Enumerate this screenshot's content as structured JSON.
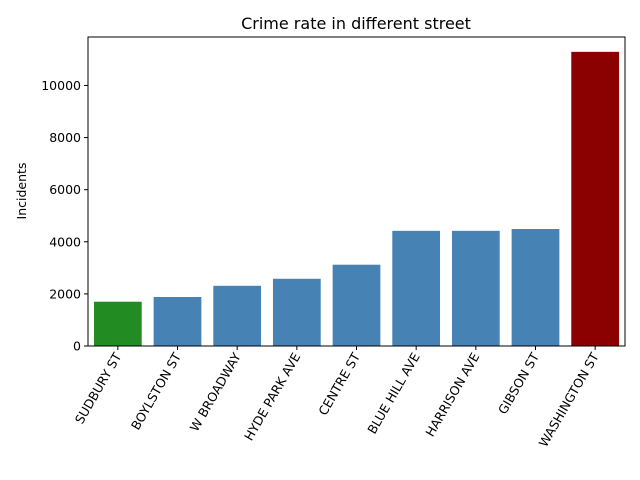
{
  "chart_data": {
    "type": "bar",
    "title": "Crime rate in different street",
    "xlabel": "",
    "ylabel": "Incidents",
    "categories": [
      "SUDBURY ST",
      "BOYLSTON ST",
      "W BROADWAY",
      "HYDE PARK AVE",
      "CENTRE ST",
      "BLUE HILL AVE",
      "HARRISON AVE",
      "GIBSON ST",
      "WASHINGTON ST"
    ],
    "values": [
      1700,
      1880,
      2310,
      2580,
      3120,
      4420,
      4420,
      4490,
      11290
    ],
    "bar_colors": [
      "#228b22",
      "#4682b4",
      "#4682b4",
      "#4682b4",
      "#4682b4",
      "#4682b4",
      "#4682b4",
      "#4682b4",
      "#8b0000"
    ],
    "yticks": [
      0,
      2000,
      4000,
      6000,
      8000,
      10000
    ],
    "ylim": [
      0,
      11860
    ],
    "grid": false,
    "legend": "none"
  }
}
